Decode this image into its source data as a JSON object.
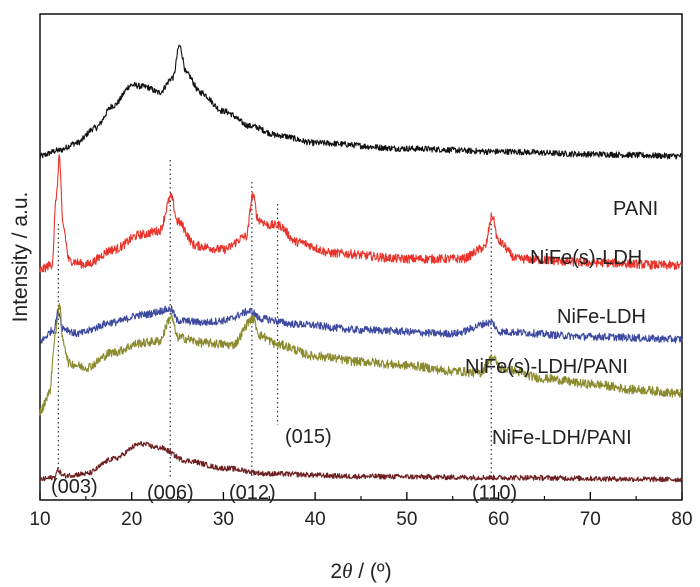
{
  "chart_data": {
    "type": "line",
    "xlabel_prefix": "2",
    "xlabel_theta": "θ",
    "xlabel_suffix": " / (º)",
    "ylabel": "Intensity / a.u.",
    "xlim": [
      10,
      80
    ],
    "xticks": [
      "10",
      "20",
      "30",
      "40",
      "50",
      "60",
      "70",
      "80"
    ],
    "colors": {
      "PANI": "#111111",
      "NiFe(s)-LDH": "#e8322a",
      "NiFe-LDH": "#3d4aa0",
      "NiFe(s)-LDH/PANI": "#8a8a2e",
      "NiFe-LDH/PANI": "#6e1f1f"
    },
    "series": [
      {
        "name": "PANI",
        "baseline": 9.2,
        "points": [
          [
            10,
            0.0
          ],
          [
            12,
            0.15
          ],
          [
            14,
            0.35
          ],
          [
            16,
            0.75
          ],
          [
            18,
            1.35
          ],
          [
            20,
            1.9
          ],
          [
            21.5,
            1.85
          ],
          [
            23,
            1.7
          ],
          [
            24.5,
            2.1
          ],
          [
            25.2,
            2.95
          ],
          [
            26,
            2.2
          ],
          [
            27.5,
            1.7
          ],
          [
            30,
            1.2
          ],
          [
            33,
            0.8
          ],
          [
            36,
            0.55
          ],
          [
            40,
            0.35
          ],
          [
            50,
            0.2
          ],
          [
            60,
            0.12
          ],
          [
            70,
            0.05
          ],
          [
            80,
            0.0
          ]
        ]
      },
      {
        "name": "NiFe(s)-LDH",
        "baseline": 6.15,
        "points": [
          [
            10,
            0.0
          ],
          [
            11.3,
            0.15
          ],
          [
            11.8,
            2.0
          ],
          [
            12.1,
            3.05
          ],
          [
            12.5,
            1.2
          ],
          [
            13.2,
            0.25
          ],
          [
            15,
            0.15
          ],
          [
            18,
            0.55
          ],
          [
            21,
            0.95
          ],
          [
            23,
            1.05
          ],
          [
            24.3,
            1.95
          ],
          [
            25,
            1.3
          ],
          [
            27,
            0.65
          ],
          [
            30,
            0.55
          ],
          [
            32.5,
            0.9
          ],
          [
            33.2,
            2.0
          ],
          [
            33.8,
            1.35
          ],
          [
            35,
            1.2
          ],
          [
            36,
            1.2
          ],
          [
            38,
            0.75
          ],
          [
            42,
            0.45
          ],
          [
            50,
            0.3
          ],
          [
            56,
            0.3
          ],
          [
            58.5,
            0.6
          ],
          [
            59.3,
            1.45
          ],
          [
            60,
            0.75
          ],
          [
            62,
            0.3
          ],
          [
            70,
            0.2
          ],
          [
            80,
            0.12
          ]
        ]
      },
      {
        "name": "NiFe-LDH",
        "baseline": 4.25,
        "points": [
          [
            10,
            0.0
          ],
          [
            11.5,
            0.3
          ],
          [
            12,
            0.8
          ],
          [
            12.5,
            0.35
          ],
          [
            14,
            0.2
          ],
          [
            18,
            0.5
          ],
          [
            21,
            0.7
          ],
          [
            24.3,
            0.85
          ],
          [
            25,
            0.55
          ],
          [
            28,
            0.5
          ],
          [
            30,
            0.55
          ],
          [
            33,
            0.8
          ],
          [
            34,
            0.6
          ],
          [
            38,
            0.45
          ],
          [
            45,
            0.3
          ],
          [
            55,
            0.2
          ],
          [
            59.3,
            0.5
          ],
          [
            60,
            0.25
          ],
          [
            70,
            0.12
          ],
          [
            80,
            0.05
          ]
        ]
      },
      {
        "name": "NiFe(s)-LDH/PANI",
        "baseline": 2.35,
        "points": [
          [
            10,
            0.0
          ],
          [
            11,
            0.5
          ],
          [
            11.7,
            2.1
          ],
          [
            12.1,
            2.9
          ],
          [
            12.5,
            1.9
          ],
          [
            13.2,
            1.3
          ],
          [
            15,
            1.2
          ],
          [
            18,
            1.6
          ],
          [
            21,
            1.85
          ],
          [
            23,
            1.9
          ],
          [
            24.3,
            2.55
          ],
          [
            25,
            2.0
          ],
          [
            28,
            1.85
          ],
          [
            31,
            1.8
          ],
          [
            33.2,
            2.5
          ],
          [
            34,
            2.05
          ],
          [
            36,
            1.8
          ],
          [
            40,
            1.5
          ],
          [
            45,
            1.35
          ],
          [
            50,
            1.25
          ],
          [
            55,
            1.1
          ],
          [
            58,
            1.05
          ],
          [
            59.3,
            1.45
          ],
          [
            60.5,
            1.15
          ],
          [
            65,
            0.9
          ],
          [
            70,
            0.75
          ],
          [
            75,
            0.6
          ],
          [
            80,
            0.5
          ]
        ]
      },
      {
        "name": "NiFe-LDH/PANI",
        "baseline": 0.55,
        "points": [
          [
            10,
            0.0
          ],
          [
            11.5,
            0.05
          ],
          [
            12,
            0.25
          ],
          [
            12.5,
            0.1
          ],
          [
            15,
            0.15
          ],
          [
            18,
            0.55
          ],
          [
            21,
            0.95
          ],
          [
            23,
            0.85
          ],
          [
            26,
            0.5
          ],
          [
            30,
            0.3
          ],
          [
            35,
            0.15
          ],
          [
            45,
            0.08
          ],
          [
            60,
            0.05
          ],
          [
            80,
            0.0
          ]
        ]
      }
    ],
    "series_labels": [
      "PANI",
      "NiFe(s)-LDH",
      "NiFe-LDH",
      "NiFe(s)-LDH/PANI",
      "NiFe-LDH/PANI"
    ],
    "reference_lines": [
      {
        "x": 12.0,
        "label": "(003)"
      },
      {
        "x": 24.2,
        "label": "(006)"
      },
      {
        "x": 33.1,
        "label": "(012)"
      },
      {
        "x": 35.9,
        "label": "(015)"
      },
      {
        "x": 59.2,
        "label": "(110)"
      }
    ]
  }
}
